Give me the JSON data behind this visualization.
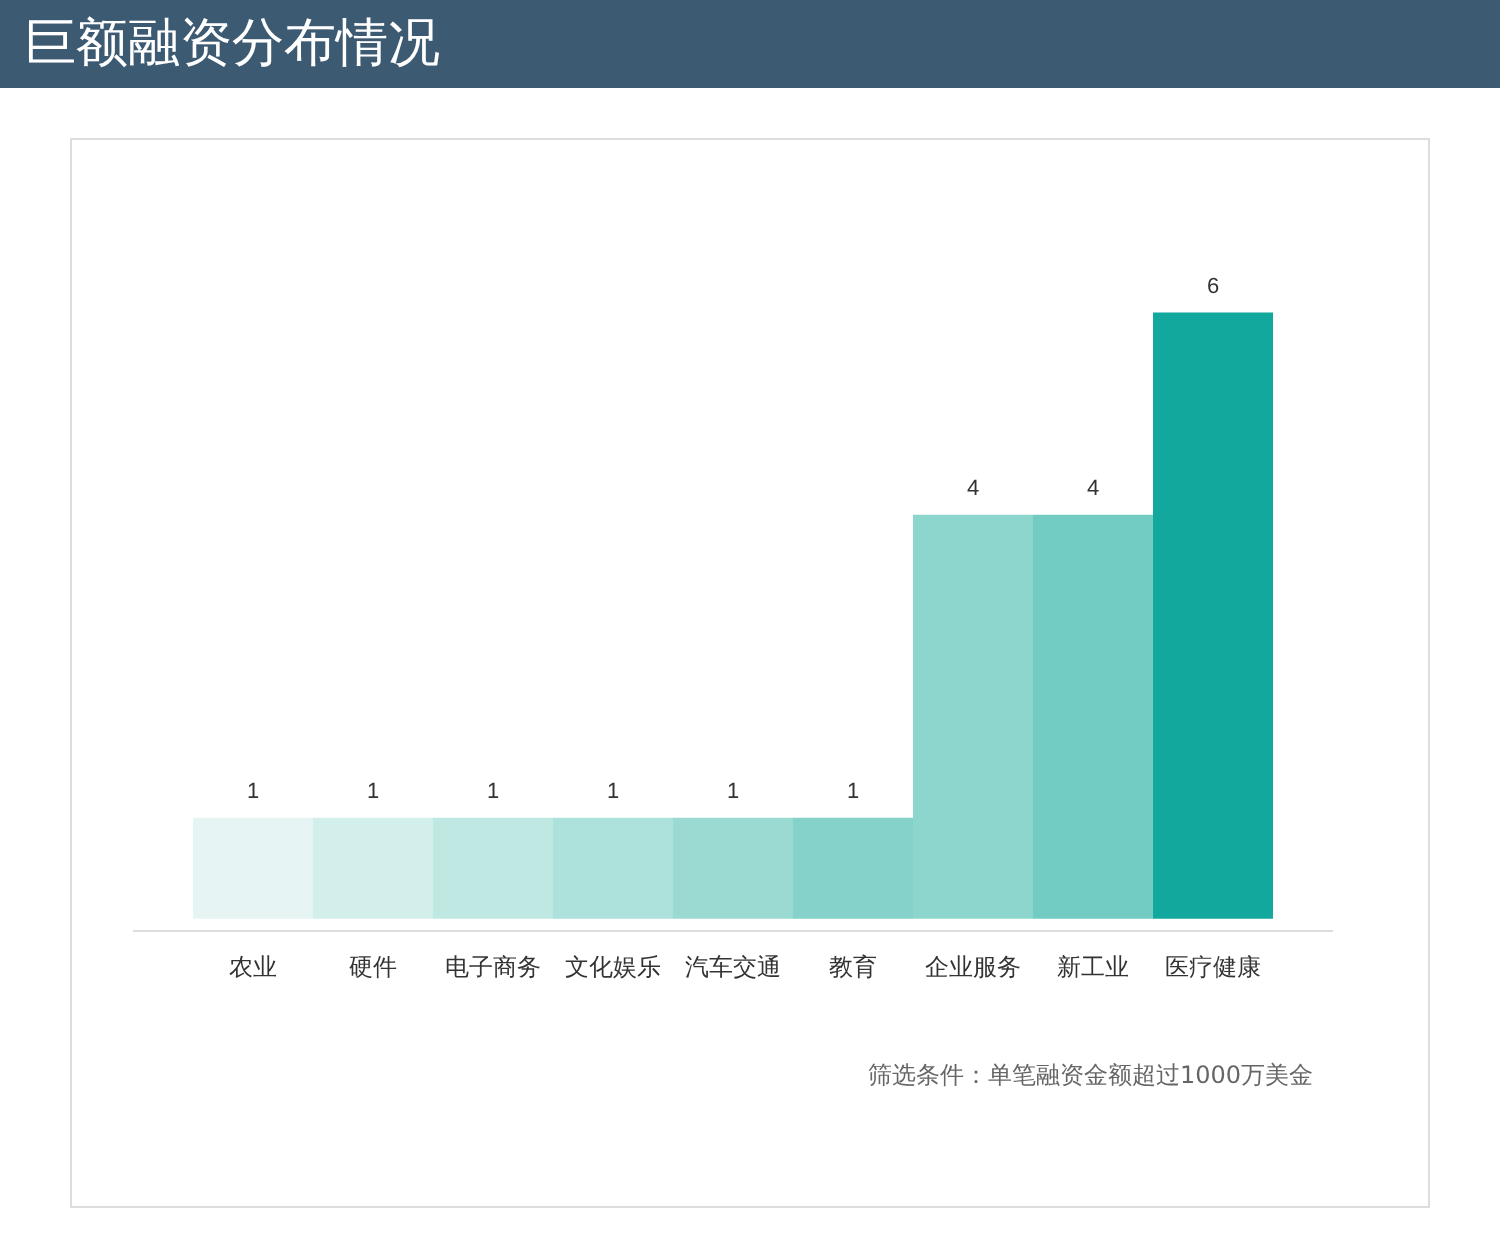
{
  "chart_data": {
    "type": "bar",
    "title": "巨额融资分布情况",
    "categories": [
      "农业",
      "硬件",
      "电子商务",
      "文化娱乐",
      "汽车交通",
      "教育",
      "企业服务",
      "新工业",
      "医疗健康"
    ],
    "values": [
      1,
      1,
      1,
      1,
      1,
      1,
      4,
      4,
      6
    ],
    "colors": [
      "#e6f5f3",
      "#d3efec",
      "#bfe8e3",
      "#ade1db",
      "#9bdad3",
      "#84d2c9",
      "#8dd6cd",
      "#73ccc3",
      "#13a89e"
    ],
    "data_labels": true,
    "annotations": [
      "筛选条件：单笔融资金额超过1000万美金"
    ]
  }
}
